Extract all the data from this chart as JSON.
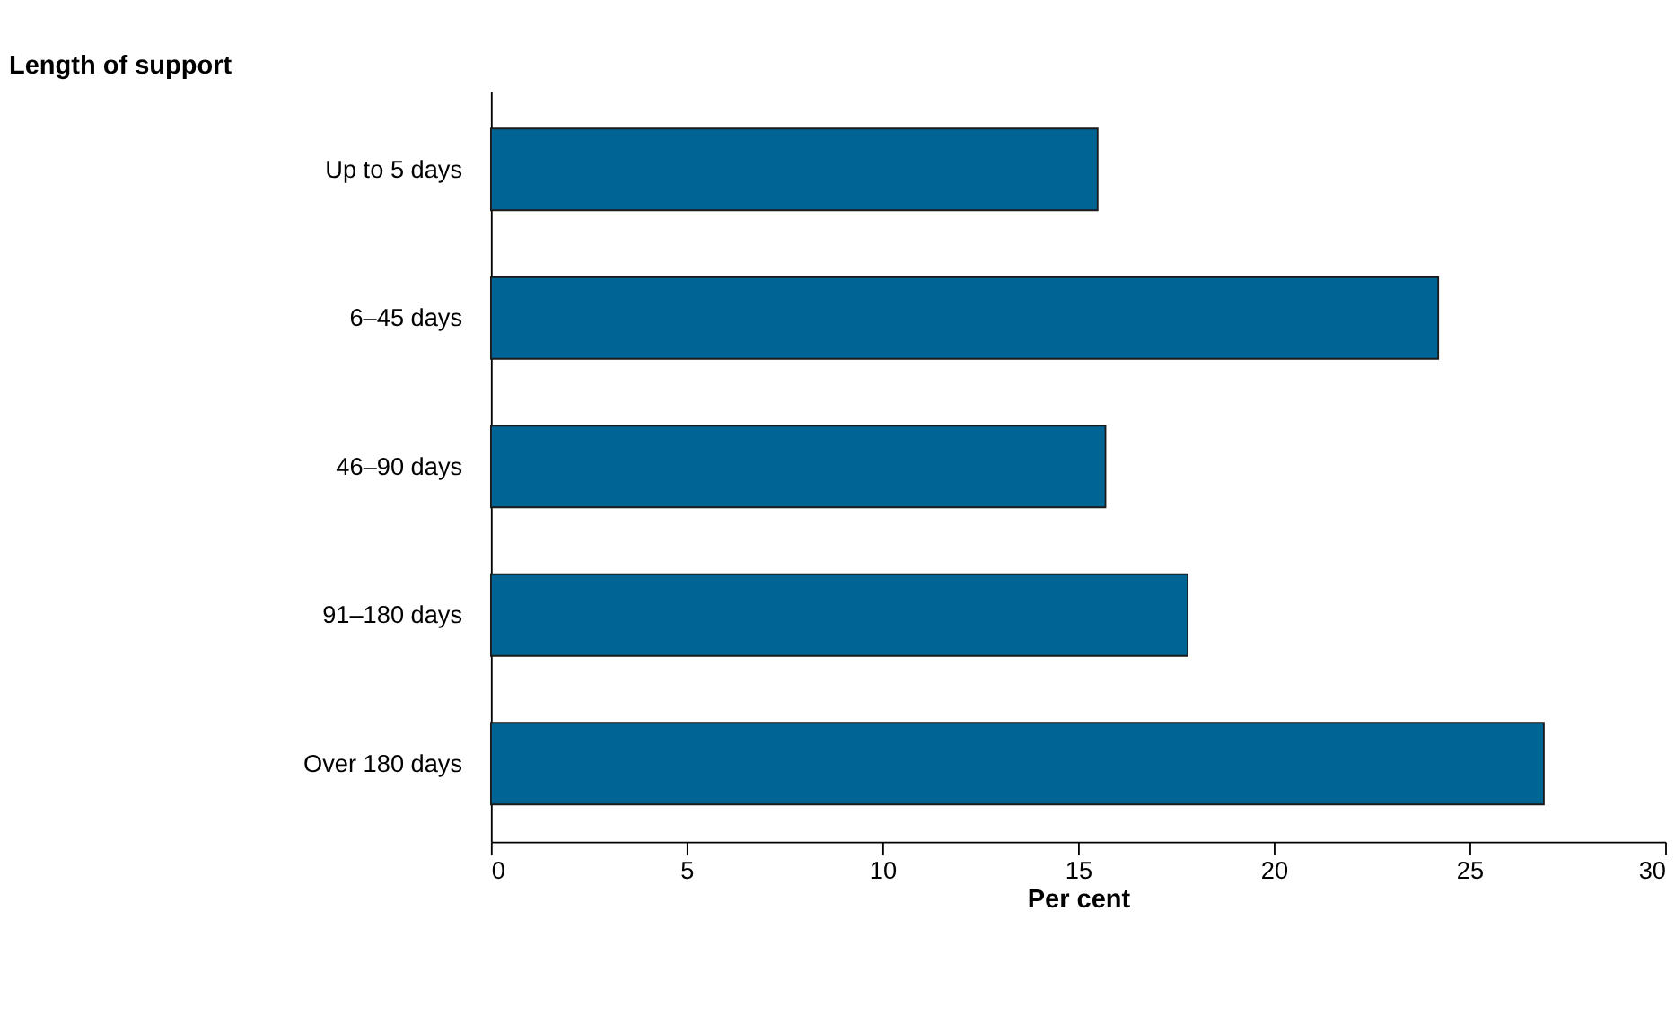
{
  "chart_data": {
    "type": "bar",
    "orientation": "horizontal",
    "ylabel": "Length of support",
    "xlabel": "Per cent",
    "categories": [
      "Up to 5 days",
      "6–45 days",
      "46–90 days",
      "91–180 days",
      "Over 180 days"
    ],
    "values": [
      15.5,
      24.2,
      15.7,
      17.8,
      26.9
    ],
    "color": "#006595",
    "xlim": [
      0,
      30
    ],
    "xticks": [
      0,
      5,
      10,
      15,
      20,
      25,
      30
    ],
    "grid": false
  }
}
